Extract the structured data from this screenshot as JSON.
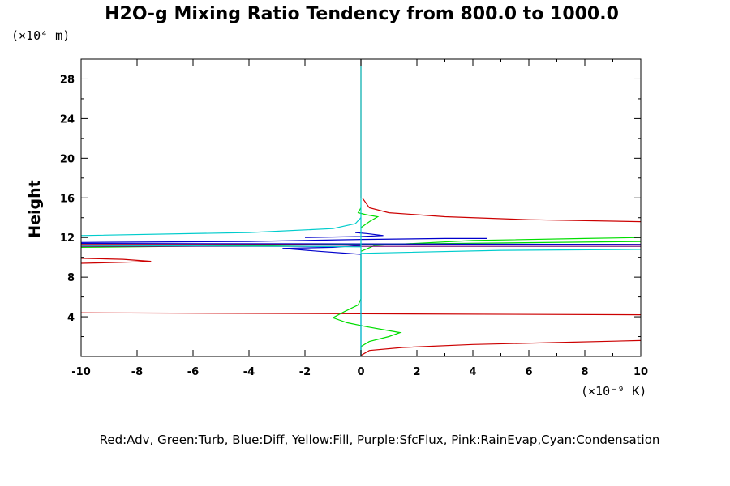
{
  "chart_data": {
    "type": "line",
    "title": "H2O-g Mixing Ratio Tendency from 800.0 to 1000.0",
    "ylabel": "Height",
    "y_unit_label": "(×10⁴ m)",
    "x_unit_label": "(×10⁻⁹ K)",
    "xlim": [
      -10,
      10
    ],
    "ylim": [
      0,
      30
    ],
    "x_ticks": [
      -10,
      -8,
      -6,
      -4,
      -2,
      0,
      2,
      4,
      6,
      8,
      10
    ],
    "y_ticks": [
      4,
      8,
      12,
      16,
      20,
      24,
      28
    ],
    "grid": false,
    "legend_text": "Red:Adv, Green:Turb, Blue:Diff, Yellow:Fill, Purple:SfcFlux, Pink:RainEvap,Cyan:Condensation",
    "legend_position": "bottom",
    "series": [
      {
        "name": "Adv",
        "color": "#cc0000",
        "segments": [
          [
            [
              0,
              0.1
            ],
            [
              0.3,
              0.6
            ],
            [
              1.5,
              0.9
            ],
            [
              4,
              1.2
            ],
            [
              7,
              1.4
            ],
            [
              10,
              1.6
            ]
          ],
          [
            [
              -10,
              4.4
            ],
            [
              10,
              4.2
            ]
          ],
          [
            [
              -10,
              9.4
            ],
            [
              -8.5,
              9.5
            ],
            [
              -7.5,
              9.6
            ],
            [
              -8.5,
              9.8
            ],
            [
              -10,
              9.9
            ]
          ],
          [
            [
              -10,
              11.3
            ],
            [
              10,
              11.3
            ]
          ],
          [
            [
              10,
              13.6
            ],
            [
              6,
              13.8
            ],
            [
              3,
              14.1
            ],
            [
              1,
              14.5
            ],
            [
              0.3,
              15.0
            ],
            [
              0.05,
              16.0
            ]
          ],
          [
            [
              0,
              16.0
            ],
            [
              0,
              30
            ]
          ]
        ]
      },
      {
        "name": "Turb",
        "color": "#00dd00",
        "segments": [
          [
            [
              0,
              0.0
            ],
            [
              0,
              1.0
            ],
            [
              0.3,
              1.5
            ],
            [
              1.0,
              2.0
            ],
            [
              1.4,
              2.4
            ],
            [
              0.8,
              2.7
            ],
            [
              0.2,
              3.0
            ],
            [
              -0.5,
              3.4
            ],
            [
              -1.0,
              3.9
            ],
            [
              -0.6,
              4.5
            ],
            [
              -0.1,
              5.2
            ],
            [
              0,
              5.8
            ],
            [
              0,
              10.3
            ]
          ],
          [
            [
              -10,
              11.0
            ],
            [
              10,
              11.6
            ]
          ],
          [
            [
              0,
              10.6
            ],
            [
              0.5,
              11.2
            ],
            [
              4,
              11.7
            ],
            [
              8,
              11.9
            ],
            [
              10,
              12.0
            ]
          ],
          [
            [
              0,
              13.0
            ],
            [
              0.3,
              13.6
            ],
            [
              0.6,
              14.1
            ],
            [
              0.2,
              14.3
            ],
            [
              -0.1,
              14.5
            ],
            [
              0,
              15.0
            ]
          ]
        ]
      },
      {
        "name": "Diff",
        "color": "#0000cc",
        "segments": [
          [
            [
              0,
              0.0
            ],
            [
              0,
              10.3
            ]
          ],
          [
            [
              0,
              10.3
            ],
            [
              -1.5,
              10.6
            ],
            [
              -2.8,
              10.9
            ],
            [
              -1,
              11.0
            ],
            [
              0,
              11.2
            ]
          ],
          [
            [
              -10,
              11.4
            ],
            [
              10,
              11.3
            ]
          ],
          [
            [
              -10,
              11.5
            ],
            [
              -4,
              11.6
            ],
            [
              0,
              11.8
            ],
            [
              3,
              11.9
            ],
            [
              4.5,
              11.9
            ]
          ],
          [
            [
              -2,
              12.0
            ],
            [
              0,
              12.1
            ],
            [
              0.8,
              12.2
            ],
            [
              0.2,
              12.4
            ],
            [
              -0.2,
              12.5
            ]
          ]
        ]
      },
      {
        "name": "SfcFlux",
        "color": "#770077",
        "segments": [
          [
            [
              -10,
              11.1
            ],
            [
              10,
              11.1
            ]
          ]
        ]
      },
      {
        "name": "Condensation",
        "color": "#00cccc",
        "segments": [
          [
            [
              0,
              0.0
            ],
            [
              0,
              30
            ]
          ],
          [
            [
              10,
              10.8
            ],
            [
              5,
              10.7
            ],
            [
              0,
              10.4
            ]
          ],
          [
            [
              -10,
              11.2
            ],
            [
              -2,
              11.1
            ],
            [
              0,
              11.05
            ]
          ],
          [
            [
              -10,
              12.2
            ],
            [
              -4,
              12.5
            ],
            [
              -1,
              12.9
            ],
            [
              -0.2,
              13.4
            ],
            [
              0,
              14
            ]
          ]
        ]
      }
    ]
  }
}
